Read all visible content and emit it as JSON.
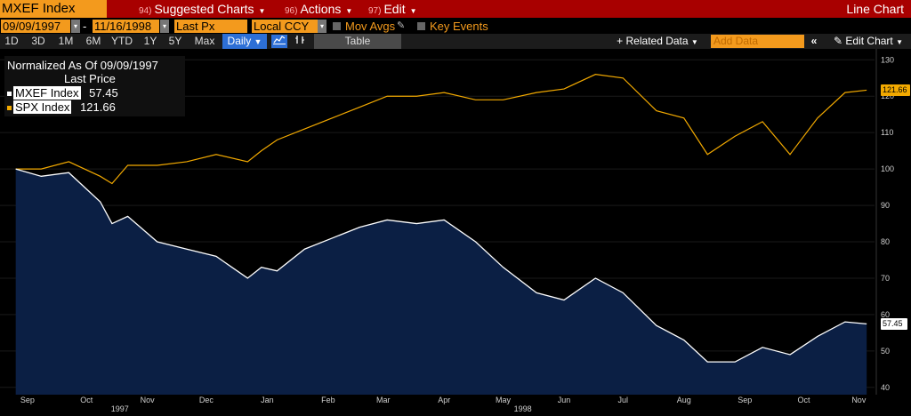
{
  "topbar": {
    "ticker": "MXEF Index",
    "suggested_num": "94)",
    "suggested_label": "Suggested Charts",
    "actions_num": "96)",
    "actions_label": "Actions",
    "edit_num": "97)",
    "edit_label": "Edit",
    "view_title": "Line Chart"
  },
  "controls": {
    "start_date": "09/09/1997",
    "end_date": "11/16/1998",
    "date_sep": "-",
    "field": "Last Px",
    "currency": "Local CCY",
    "mov_avgs": "Mov Avgs",
    "key_events": "Key Events"
  },
  "periods": [
    "1D",
    "3D",
    "1M",
    "6M",
    "YTD",
    "1Y",
    "5Y",
    "Max"
  ],
  "toolbar": {
    "daily": "Daily",
    "table": "Table",
    "related_data": "Related Data",
    "add_data_placeholder": "Add Data",
    "edit_chart": "Edit Chart"
  },
  "legend": {
    "title": "Normalized As Of 09/09/1997",
    "subtitle": "Last Price"
  },
  "colors": {
    "spx": "#f2a900",
    "mxef_line": "#ffffff",
    "mxef_fill": "#0b1f44",
    "accent": "#f39a1d",
    "topbar": "#a80000"
  },
  "chart_data": {
    "type": "line",
    "ylim": [
      38,
      133
    ],
    "yticks": [
      40,
      50,
      60,
      70,
      80,
      90,
      100,
      110,
      120,
      130
    ],
    "month_labels": [
      "Sep",
      "Oct",
      "Nov",
      "Dec",
      "Jan",
      "Feb",
      "Mar",
      "Apr",
      "May",
      "Jun",
      "Jul",
      "Aug",
      "Sep",
      "Oct",
      "Nov"
    ],
    "year_labels": [
      "1997",
      "1998"
    ],
    "x": [
      "1997-09-09",
      "1997-09-22",
      "1997-10-06",
      "1997-10-22",
      "1997-10-28",
      "1997-11-05",
      "1997-11-20",
      "1997-12-05",
      "1997-12-20",
      "1998-01-05",
      "1998-01-12",
      "1998-01-20",
      "1998-02-03",
      "1998-02-17",
      "1998-03-03",
      "1998-03-17",
      "1998-04-01",
      "1998-04-15",
      "1998-05-01",
      "1998-05-15",
      "1998-06-01",
      "1998-06-15",
      "1998-07-01",
      "1998-07-15",
      "1998-08-01",
      "1998-08-15",
      "1998-08-27",
      "1998-09-10",
      "1998-09-24",
      "1998-10-08",
      "1998-10-22",
      "1998-11-05",
      "1998-11-16"
    ],
    "series": [
      {
        "name": "MXEF Index",
        "last": 57.45,
        "values": [
          100,
          98,
          99,
          91,
          85,
          87,
          80,
          78,
          76,
          70,
          73,
          72,
          78,
          81,
          84,
          86,
          85,
          86,
          80,
          73,
          66,
          64,
          70,
          66,
          57,
          53,
          47,
          47,
          51,
          49,
          54,
          58,
          57.45
        ]
      },
      {
        "name": "SPX Index",
        "last": 121.66,
        "values": [
          100,
          100,
          102,
          98,
          96,
          101,
          101,
          102,
          104,
          102,
          105,
          108,
          111,
          114,
          117,
          120,
          120,
          121,
          119,
          119,
          121,
          122,
          126,
          125,
          116,
          114,
          104,
          109,
          113,
          104,
          114,
          121,
          121.66
        ]
      }
    ]
  }
}
